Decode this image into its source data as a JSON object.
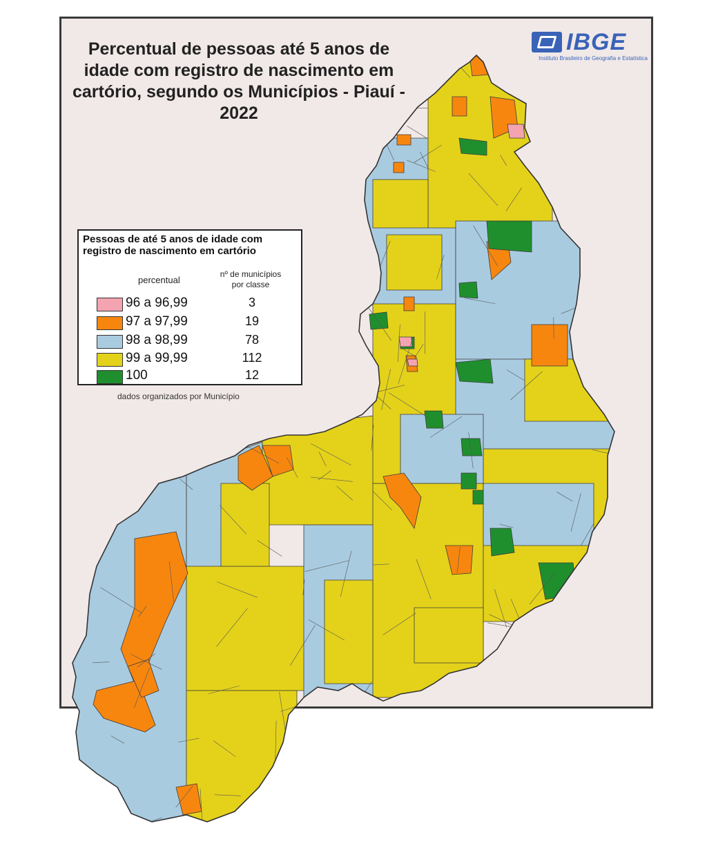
{
  "map": {
    "title": "Percentual de pessoas até 5 anos de idade com registro de nascimento em cartório, segundo os Municípios - Piauí - 2022",
    "region": "Piauí",
    "year": "2022",
    "logo": {
      "text": "IBGE",
      "subtitle": "Instituto Brasileiro de Geografia e Estatística"
    },
    "colors": {
      "background": "#f1e9e8",
      "class_96": "#f4a3b0",
      "class_97": "#f7860f",
      "class_98": "#a9cbe0",
      "class_99": "#e4d21a",
      "class_100": "#1f8f2e"
    }
  },
  "legend": {
    "title": "Pessoas de até 5 anos de idade com registro de nascimento em cartório",
    "header_percentual": "percentual",
    "header_count": "nº de municípios por classe",
    "note": "dados organizados por Município",
    "items": [
      {
        "label": "96 a 96,99",
        "count": "3",
        "color": "#f4a3b0"
      },
      {
        "label": "97 a 97,99",
        "count": "19",
        "color": "#f7860f"
      },
      {
        "label": "98 a 98,99",
        "count": "78",
        "color": "#a9cbe0"
      },
      {
        "label": "99 a 99,99",
        "count": "112",
        "color": "#e4d21a"
      },
      {
        "label": "100",
        "count": "12",
        "color": "#1f8f2e"
      }
    ]
  }
}
